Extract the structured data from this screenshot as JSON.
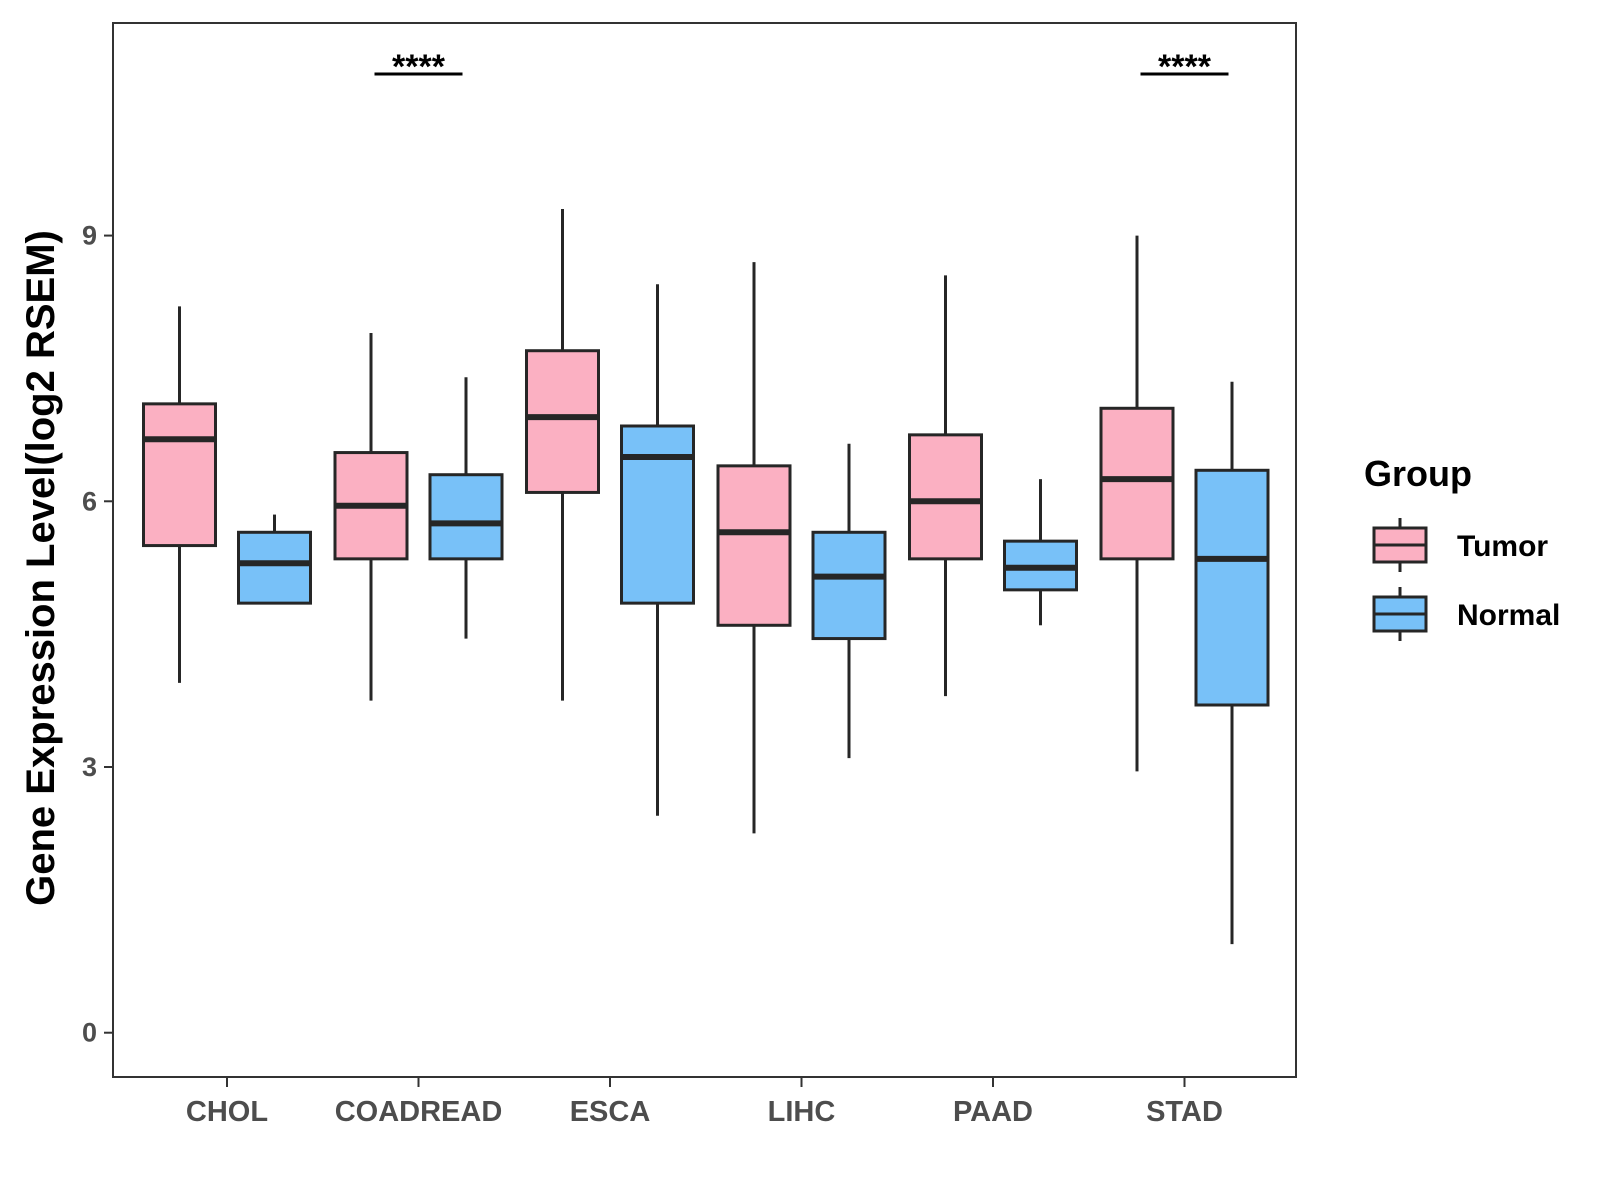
{
  "chart_data": {
    "type": "boxplot",
    "title": "",
    "xlabel": "",
    "ylabel": "Gene Expression Level(log2 RSEM)",
    "ylim": [
      -0.5,
      11.4
    ],
    "yticks": [
      0,
      3,
      6,
      9
    ],
    "categories": [
      "CHOL",
      "COADREAD",
      "ESCA",
      "LIHC",
      "PAAD",
      "STAD"
    ],
    "legend": {
      "title": "Group",
      "position": "right",
      "entries": [
        {
          "name": "Tumor",
          "color": "#FBB0C2"
        },
        {
          "name": "Normal",
          "color": "#78C1F8"
        }
      ]
    },
    "series": [
      {
        "name": "Tumor",
        "color": "#FBB0C2",
        "boxes": [
          {
            "min": 3.95,
            "q1": 5.5,
            "median": 6.7,
            "q3": 7.1,
            "max": 8.2
          },
          {
            "min": 3.75,
            "q1": 5.35,
            "median": 5.95,
            "q3": 6.55,
            "max": 7.9
          },
          {
            "min": 3.75,
            "q1": 6.1,
            "median": 6.95,
            "q3": 7.7,
            "max": 9.3
          },
          {
            "min": 2.25,
            "q1": 4.6,
            "median": 5.65,
            "q3": 6.4,
            "max": 8.7
          },
          {
            "min": 3.8,
            "q1": 5.35,
            "median": 6.0,
            "q3": 6.75,
            "max": 8.55
          },
          {
            "min": 2.95,
            "q1": 5.35,
            "median": 6.25,
            "q3": 7.05,
            "max": 9.0
          }
        ]
      },
      {
        "name": "Normal",
        "color": "#78C1F8",
        "boxes": [
          {
            "min": 4.85,
            "q1": 4.85,
            "median": 5.3,
            "q3": 5.65,
            "max": 5.85
          },
          {
            "min": 4.45,
            "q1": 5.35,
            "median": 5.75,
            "q3": 6.3,
            "max": 7.4
          },
          {
            "min": 2.45,
            "q1": 4.85,
            "median": 6.5,
            "q3": 6.85,
            "max": 8.45
          },
          {
            "min": 3.1,
            "q1": 4.45,
            "median": 5.15,
            "q3": 5.65,
            "max": 6.65
          },
          {
            "min": 4.6,
            "q1": 5.0,
            "median": 5.25,
            "q3": 5.55,
            "max": 6.25
          },
          {
            "min": 1.0,
            "q1": 3.7,
            "median": 5.35,
            "q3": 6.35,
            "max": 7.35
          }
        ]
      }
    ],
    "annotations": [
      {
        "category": "COADREAD",
        "text": "****"
      },
      {
        "category": "STAD",
        "text": "****"
      }
    ]
  }
}
